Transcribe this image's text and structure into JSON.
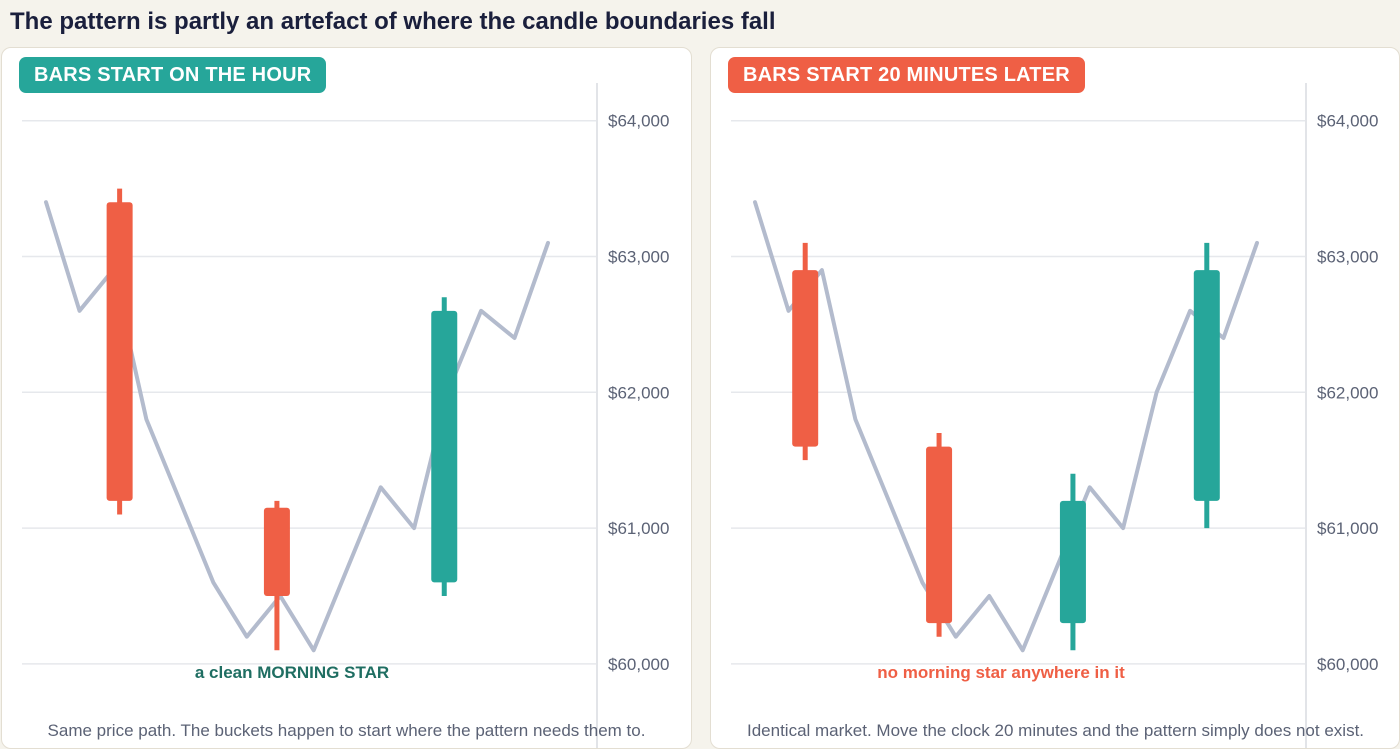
{
  "title": "The pattern is partly an artefact of where the candle boundaries fall",
  "colors": {
    "up": "#26a69a",
    "down": "#ef5f45",
    "price_path": "#b3bbcd",
    "grid": "#e6e8ec",
    "axis_text": "#5b6275",
    "caption_left": "#1f6e62",
    "caption_right": "#ef5f45"
  },
  "chart_data": [
    {
      "type": "candlestick",
      "badge": "BARS START ON THE HOUR",
      "badge_color": "#26a69a",
      "caption": "a clean MORNING STAR",
      "footer": "Same price path. The buckets happen to start where the pattern needs them to.",
      "y_ticks": [
        60000,
        61000,
        62000,
        63000,
        64000
      ],
      "y_tick_labels": [
        "$60,000",
        "$61,000",
        "$62,000",
        "$63,000",
        "$64,000"
      ],
      "ylim": [
        59800,
        64300
      ],
      "xlim": [
        0,
        15
      ],
      "price_path": [
        63400,
        62600,
        62900,
        61800,
        61200,
        60600,
        60200,
        60500,
        60100,
        60700,
        61300,
        61000,
        62000,
        62600,
        62400,
        63100
      ],
      "candles": [
        {
          "x": 2.2,
          "open": 63400,
          "high": 63500,
          "low": 61100,
          "close": 61200
        },
        {
          "x": 6.9,
          "open": 61150,
          "high": 61200,
          "low": 60100,
          "close": 60500
        },
        {
          "x": 11.9,
          "open": 60600,
          "high": 62700,
          "low": 60500,
          "close": 62600
        }
      ]
    },
    {
      "type": "candlestick",
      "badge": "BARS START 20 MINUTES LATER",
      "badge_color": "#ef5f45",
      "caption": "no morning star anywhere in it",
      "footer": "Identical market. Move the clock 20 minutes and the pattern simply does not exist.",
      "y_ticks": [
        60000,
        61000,
        62000,
        63000,
        64000
      ],
      "y_tick_labels": [
        "$60,000",
        "$61,000",
        "$62,000",
        "$63,000",
        "$64,000"
      ],
      "ylim": [
        59800,
        64300
      ],
      "xlim": [
        0,
        15
      ],
      "price_path": [
        63400,
        62600,
        62900,
        61800,
        61200,
        60600,
        60200,
        60500,
        60100,
        60700,
        61300,
        61000,
        62000,
        62600,
        62400,
        63100
      ],
      "candles": [
        {
          "x": 1.5,
          "open": 62900,
          "high": 63100,
          "low": 61500,
          "close": 61600
        },
        {
          "x": 5.5,
          "open": 61600,
          "high": 61700,
          "low": 60200,
          "close": 60300
        },
        {
          "x": 9.5,
          "open": 60300,
          "high": 61400,
          "low": 60100,
          "close": 61200
        },
        {
          "x": 13.5,
          "open": 61200,
          "high": 63100,
          "low": 61000,
          "close": 62900
        }
      ]
    }
  ]
}
